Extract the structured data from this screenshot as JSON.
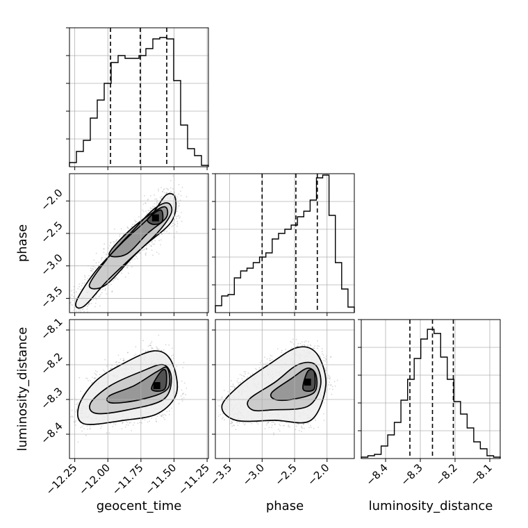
{
  "chart_data": {
    "type": "corner",
    "parameters": [
      "geocent_time",
      "phase",
      "luminosity_distance"
    ],
    "axes": {
      "geocent_time": {
        "label": "geocent_time",
        "range": [
          -12.29,
          -11.24
        ],
        "ticks": [
          -12.25,
          -12.0,
          -11.75,
          -11.5,
          -11.25
        ],
        "tick_labels": [
          "−12.25",
          "−12.00",
          "−11.75",
          "−11.50",
          "−11.25"
        ]
      },
      "phase": {
        "label": "phase",
        "range": [
          -3.72,
          -1.58
        ],
        "ticks": [
          -3.5,
          -3.0,
          -2.5,
          -2.0
        ],
        "tick_labels": [
          "−3.5",
          "−3.0",
          "−2.5",
          "−2.0"
        ]
      },
      "luminosity_distance": {
        "label": "luminosity_distance",
        "range": [
          -8.47,
          -8.07
        ],
        "ticks": [
          -8.4,
          -8.3,
          -8.2,
          -8.1
        ],
        "tick_labels": [
          "−8.4",
          "−8.3",
          "−8.2",
          "−8.1"
        ]
      }
    },
    "histograms": [
      {
        "parameter": "geocent_time",
        "quantiles": [
          -11.98,
          -11.755,
          -11.555
        ],
        "heights": [
          0.03,
          0.11,
          0.19,
          0.35,
          0.48,
          0.6,
          0.75,
          0.8,
          0.78,
          0.78,
          0.8,
          0.85,
          0.92,
          0.93,
          0.92,
          0.62,
          0.3,
          0.13,
          0.08,
          0.01
        ]
      },
      {
        "parameter": "phase",
        "quantiles": [
          -3.0,
          -2.48,
          -2.15
        ],
        "heights": [
          0.05,
          0.12,
          0.13,
          0.25,
          0.3,
          0.32,
          0.36,
          0.4,
          0.43,
          0.53,
          0.57,
          0.6,
          0.63,
          0.69,
          0.73,
          0.81,
          0.97,
          0.99,
          0.7,
          0.36,
          0.17,
          0.04
        ]
      },
      {
        "parameter": "luminosity_distance",
        "quantiles": [
          -8.33,
          -8.265,
          -8.205
        ],
        "heights": [
          0.01,
          0.02,
          0.03,
          0.09,
          0.17,
          0.26,
          0.42,
          0.57,
          0.72,
          0.86,
          0.93,
          0.9,
          0.73,
          0.57,
          0.41,
          0.32,
          0.22,
          0.12,
          0.07,
          0.02,
          0.01
        ]
      }
    ],
    "scatter_panels": [
      {
        "x": "geocent_time",
        "y": "phase",
        "peak": [
          -11.64,
          -2.26
        ],
        "contours": [
          [
            [
              -12.24,
              -3.56
            ],
            [
              -12.1,
              -3.1
            ],
            [
              -11.88,
              -2.62
            ],
            [
              -11.68,
              -2.24
            ],
            [
              -11.56,
              -1.91
            ],
            [
              -11.49,
              -1.96
            ],
            [
              -11.52,
              -2.32
            ],
            [
              -11.74,
              -2.72
            ],
            [
              -12.0,
              -3.22
            ],
            [
              -12.18,
              -3.62
            ]
          ],
          [
            [
              -12.14,
              -3.3
            ],
            [
              -12.0,
              -2.88
            ],
            [
              -11.83,
              -2.5
            ],
            [
              -11.66,
              -2.14
            ],
            [
              -11.55,
              -2.03
            ],
            [
              -11.52,
              -2.18
            ],
            [
              -11.62,
              -2.48
            ],
            [
              -11.81,
              -2.86
            ],
            [
              -12.02,
              -3.3
            ]
          ],
          [
            [
              -11.99,
              -2.82
            ],
            [
              -11.86,
              -2.5
            ],
            [
              -11.69,
              -2.22
            ],
            [
              -11.57,
              -2.09
            ],
            [
              -11.56,
              -2.26
            ],
            [
              -11.7,
              -2.5
            ],
            [
              -11.86,
              -2.82
            ]
          ],
          [
            [
              -11.7,
              -2.28
            ],
            [
              -11.6,
              -2.14
            ],
            [
              -11.59,
              -2.32
            ],
            [
              -11.66,
              -2.36
            ]
          ]
        ]
      },
      {
        "x": "geocent_time",
        "y": "luminosity_distance",
        "peak": [
          -11.63,
          -8.26
        ],
        "contours": [
          [
            [
              -12.22,
              -8.32
            ],
            [
              -12.1,
              -8.25
            ],
            [
              -11.9,
              -8.2
            ],
            [
              -11.65,
              -8.16
            ],
            [
              -11.52,
              -8.19
            ],
            [
              -11.48,
              -8.28
            ],
            [
              -11.62,
              -8.34
            ],
            [
              -11.88,
              -8.36
            ],
            [
              -12.18,
              -8.37
            ]
          ],
          [
            [
              -12.13,
              -8.31
            ],
            [
              -11.98,
              -8.26
            ],
            [
              -11.75,
              -8.22
            ],
            [
              -11.58,
              -8.2
            ],
            [
              -11.52,
              -8.24
            ],
            [
              -11.58,
              -8.3
            ],
            [
              -11.85,
              -8.33
            ],
            [
              -12.09,
              -8.34
            ]
          ],
          [
            [
              -11.99,
              -8.29
            ],
            [
              -11.8,
              -8.26
            ],
            [
              -11.63,
              -8.22
            ],
            [
              -11.55,
              -8.21
            ],
            [
              -11.55,
              -8.27
            ],
            [
              -11.75,
              -8.3
            ],
            [
              -11.97,
              -8.31
            ]
          ],
          [
            [
              -11.67,
              -8.27
            ],
            [
              -11.6,
              -8.22
            ],
            [
              -11.56,
              -8.22
            ],
            [
              -11.57,
              -8.27
            ]
          ]
        ]
      },
      {
        "x": "phase",
        "y": "luminosity_distance",
        "peak": [
          -2.3,
          -8.25
        ],
        "contours": [
          [
            [
              -3.62,
              -8.32
            ],
            [
              -3.35,
              -8.26
            ],
            [
              -2.9,
              -8.2
            ],
            [
              -2.45,
              -8.15
            ],
            [
              -2.15,
              -8.17
            ],
            [
              -2.02,
              -8.26
            ],
            [
              -2.25,
              -8.36
            ],
            [
              -2.8,
              -8.36
            ],
            [
              -3.4,
              -8.36
            ]
          ],
          [
            [
              -3.2,
              -8.3
            ],
            [
              -2.8,
              -8.25
            ],
            [
              -2.45,
              -8.2
            ],
            [
              -2.18,
              -8.2
            ],
            [
              -2.1,
              -8.26
            ],
            [
              -2.3,
              -8.32
            ],
            [
              -2.85,
              -8.33
            ],
            [
              -3.15,
              -8.33
            ]
          ],
          [
            [
              -2.85,
              -8.28
            ],
            [
              -2.55,
              -8.24
            ],
            [
              -2.3,
              -8.21
            ],
            [
              -2.17,
              -8.23
            ],
            [
              -2.2,
              -8.28
            ],
            [
              -2.55,
              -8.3
            ],
            [
              -2.8,
              -8.3
            ]
          ],
          [
            [
              -2.37,
              -8.27
            ],
            [
              -2.3,
              -8.22
            ],
            [
              -2.2,
              -8.22
            ],
            [
              -2.2,
              -8.27
            ]
          ]
        ]
      }
    ],
    "grid": true
  }
}
